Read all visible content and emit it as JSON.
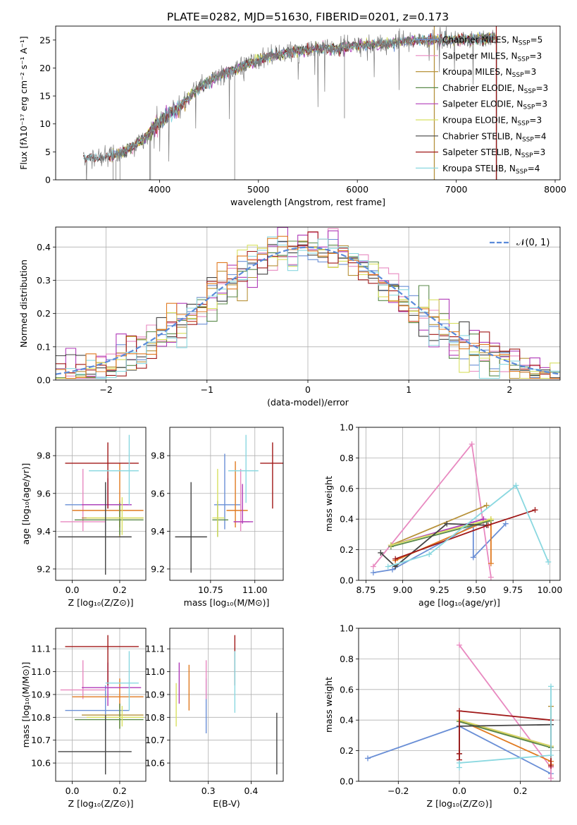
{
  "figure": {
    "title": "PLATE=0282, MJD=51630, FIBERID=0201, z=0.173"
  },
  "colors": {
    "Chabrier MILES": "#6a8fd6",
    "Salpeter MILES": "#e889c0",
    "Kroupa MILES": "#b8923a",
    "Chabrier ELODIE": "#5a8a4a",
    "Salpeter ELODIE": "#b03ab8",
    "Kroupa ELODIE": "#d8e060",
    "Chabrier STELIB": "#444444",
    "Salpeter STELIB": "#a01818",
    "Kroupa STELIB": "#8ad8e0",
    "orange": "#e07a20",
    "gray_spectrum": "#7a7a7a",
    "normal_curve": "#5b8bd9"
  },
  "chart_data": [
    {
      "id": "spectrum",
      "type": "line",
      "xlabel": "wavelength [Angstrom, rest frame]",
      "ylabel": "Flux [fλ10⁻¹⁷ erg cm⁻² s⁻¹ A⁻¹]",
      "xlim": [
        2950,
        8050
      ],
      "ylim": [
        0,
        27.5
      ],
      "xticks": [
        4000,
        5000,
        6000,
        7000,
        8000
      ],
      "yticks": [
        0,
        5,
        10,
        15,
        20,
        25
      ],
      "grid": false,
      "legend_position": "right",
      "spectrum_envelope": {
        "x": [
          3230,
          3400,
          3550,
          3700,
          3850,
          4000,
          4200,
          4400,
          4600,
          4800,
          5000,
          5200,
          5400,
          5600,
          5800,
          6000,
          6200,
          6400,
          6600,
          6800,
          7000,
          7200,
          7400
        ],
        "y": [
          3.8,
          4.0,
          4.5,
          5.6,
          7.5,
          10.5,
          13.0,
          16.5,
          18.5,
          20.0,
          21.5,
          22.5,
          23.0,
          23.5,
          23.5,
          24.0,
          24.2,
          24.5,
          25.0,
          25.0,
          25.0,
          25.2,
          25.5
        ]
      },
      "legend": [
        {
          "label": "Chabrier MILES, N",
          "sub": "SSP",
          "tail": "=5",
          "color_key": "Chabrier MILES"
        },
        {
          "label": "Salpeter MILES, N",
          "sub": "SSP",
          "tail": "=3",
          "color_key": "Salpeter MILES"
        },
        {
          "label": "Kroupa MILES, N",
          "sub": "SSP",
          "tail": "=3",
          "color_key": "Kroupa MILES"
        },
        {
          "label": "Chabrier ELODIE, N",
          "sub": "SSP",
          "tail": "=3",
          "color_key": "Chabrier ELODIE"
        },
        {
          "label": "Salpeter ELODIE, N",
          "sub": "SSP",
          "tail": "=3",
          "color_key": "Salpeter ELODIE"
        },
        {
          "label": "Kroupa ELODIE, N",
          "sub": "SSP",
          "tail": "=3",
          "color_key": "Kroupa ELODIE"
        },
        {
          "label": "Chabrier STELIB, N",
          "sub": "SSP",
          "tail": "=4",
          "color_key": "Chabrier STELIB"
        },
        {
          "label": "Salpeter STELIB, N",
          "sub": "SSP",
          "tail": "=3",
          "color_key": "Salpeter STELIB"
        },
        {
          "label": "Kroupa STELIB, N",
          "sub": "SSP",
          "tail": "=4",
          "color_key": "Kroupa STELIB"
        }
      ]
    },
    {
      "id": "residuals",
      "type": "line",
      "xlabel": "(data-model)/error",
      "ylabel": "Normed distribution",
      "xlim": [
        -2.5,
        2.5
      ],
      "ylim": [
        0,
        0.46
      ],
      "xticks": [
        -2,
        -1,
        0,
        1,
        2
      ],
      "yticks": [
        0.0,
        0.1,
        0.2,
        0.3,
        0.4
      ],
      "grid": true,
      "legend_label": "𝒩(0, 1)",
      "legend_position": "top-right",
      "bin_width": 0.1
    },
    {
      "id": "age_vs_Z",
      "type": "scatter",
      "xlabel": "Z [log₁₀(Z/Z⊙)]",
      "ylabel": "age  [log₁₀(age/yr)]",
      "xlim": [
        -0.07,
        0.31
      ],
      "ylim": [
        9.14,
        9.95
      ],
      "xticks": [
        0.0,
        0.2
      ],
      "yticks": [
        9.2,
        9.4,
        9.6,
        9.8
      ],
      "grid": true,
      "points": [
        {
          "c": "Chabrier MILES",
          "x": 0.14,
          "xe": [
            -0.03,
            0.25
          ],
          "y": 9.54,
          "ye": [
            9.41,
            9.62
          ]
        },
        {
          "c": "Salpeter MILES",
          "x": 0.045,
          "xe": [
            -0.05,
            0.14
          ],
          "y": 9.45,
          "ye": [
            9.4,
            9.73
          ]
        },
        {
          "c": "Kroupa MILES",
          "x": 0.2,
          "xe": [
            0.04,
            0.3
          ],
          "y": 9.47,
          "ye": [
            9.37,
            9.56
          ]
        },
        {
          "c": "orange",
          "x": 0.2,
          "xe": [
            0.0,
            0.3
          ],
          "y": 9.51,
          "ye": [
            9.42,
            9.76
          ]
        },
        {
          "c": "Chabrier ELODIE",
          "x": 0.2,
          "xe": [
            0.01,
            0.3
          ],
          "y": 9.46,
          "ye": [
            9.38,
            9.55
          ]
        },
        {
          "c": "Salpeter ELODIE",
          "x": 0.15,
          "xe": [
            0.04,
            0.25
          ],
          "y": 9.54,
          "ye": [
            9.52,
            9.68
          ]
        },
        {
          "c": "Kroupa ELODIE",
          "x": 0.21,
          "xe": [
            0.06,
            0.3
          ],
          "y": 9.47,
          "ye": [
            9.38,
            9.58
          ]
        },
        {
          "c": "Chabrier STELIB",
          "x": 0.14,
          "xe": [
            -0.06,
            0.25
          ],
          "y": 9.37,
          "ye": [
            9.17,
            9.66
          ]
        },
        {
          "c": "Salpeter STELIB",
          "x": 0.15,
          "xe": [
            -0.03,
            0.28
          ],
          "y": 9.76,
          "ye": [
            9.52,
            9.87
          ]
        },
        {
          "c": "Kroupa STELIB",
          "x": 0.24,
          "xe": [
            0.07,
            0.28
          ],
          "y": 9.72,
          "ye": [
            9.54,
            9.91
          ]
        }
      ]
    },
    {
      "id": "age_vs_mass",
      "type": "scatter",
      "xlabel": "mass [log₁₀(M/M⊙)]",
      "xlim": [
        10.52,
        11.16
      ],
      "ylim": [
        9.14,
        9.95
      ],
      "xticks": [
        10.75,
        11.0
      ],
      "yticks": [
        9.2,
        9.4,
        9.6,
        9.8
      ],
      "grid": true,
      "points": [
        {
          "c": "Chabrier MILES",
          "x": 10.83,
          "xe": [
            10.77,
            10.92
          ],
          "y": 9.54,
          "ye": [
            9.41,
            9.81
          ]
        },
        {
          "c": "Salpeter MILES",
          "x": 10.92,
          "xe": [
            10.88,
            10.97
          ],
          "y": 9.45,
          "ye": [
            9.4,
            9.73
          ]
        },
        {
          "c": "orange",
          "x": 10.89,
          "xe": [
            10.84,
            10.96
          ],
          "y": 9.51,
          "ye": [
            9.42,
            9.77
          ]
        },
        {
          "c": "Chabrier ELODIE",
          "x": 10.79,
          "xe": [
            10.76,
            10.85
          ],
          "y": 9.46,
          "ye": [
            9.37,
            9.56
          ]
        },
        {
          "c": "Salpeter ELODIE",
          "x": 10.93,
          "xe": [
            10.88,
            10.99
          ],
          "y": 9.45,
          "ye": [
            9.44,
            9.65
          ]
        },
        {
          "c": "Kroupa ELODIE",
          "x": 10.79,
          "xe": [
            10.76,
            10.83
          ],
          "y": 9.47,
          "ye": [
            9.37,
            9.73
          ]
        },
        {
          "c": "Chabrier STELIB",
          "x": 10.64,
          "xe": [
            10.55,
            10.73
          ],
          "y": 9.37,
          "ye": [
            9.18,
            9.66
          ]
        },
        {
          "c": "Salpeter STELIB",
          "x": 11.1,
          "xe": [
            11.03,
            11.16
          ],
          "y": 9.76,
          "ye": [
            9.52,
            9.87
          ]
        },
        {
          "c": "Kroupa STELIB",
          "x": 10.95,
          "xe": [
            10.85,
            11.02
          ],
          "y": 9.72,
          "ye": [
            9.55,
            9.91
          ]
        }
      ]
    },
    {
      "id": "mass_weight_vs_age",
      "type": "line",
      "xlabel": "age  [log₁₀(age/yr)]",
      "ylabel": "mass weight",
      "xlim": [
        8.7,
        10.07
      ],
      "ylim": [
        0,
        1
      ],
      "xticks": [
        8.75,
        9.0,
        9.25,
        9.5,
        9.75,
        10.0
      ],
      "yticks": [
        0.0,
        0.2,
        0.4,
        0.6,
        0.8,
        1.0
      ],
      "grid": true,
      "series": [
        {
          "c": "Chabrier MILES",
          "x": [
            8.8,
            8.93,
            9.48,
            9.48,
            9.7
          ],
          "y": [
            0.05,
            0.07,
            0.36,
            0.15,
            0.37
          ]
        },
        {
          "c": "Salpeter MILES",
          "x": [
            8.8,
            9.47,
            9.6
          ],
          "y": [
            0.09,
            0.89,
            0.02
          ]
        },
        {
          "c": "Kroupa MILES",
          "x": [
            8.92,
            9.57
          ],
          "y": [
            0.23,
            0.49
          ]
        },
        {
          "c": "orange",
          "x": [
            8.95,
            9.6,
            9.6
          ],
          "y": [
            0.13,
            0.4,
            0.11
          ]
        },
        {
          "c": "Chabrier ELODIE",
          "x": [
            8.92,
            9.6
          ],
          "y": [
            0.22,
            0.39
          ]
        },
        {
          "c": "Salpeter ELODIE",
          "x": [
            8.92,
            9.55
          ],
          "y": [
            0.23,
            0.4
          ]
        },
        {
          "c": "Kroupa ELODIE",
          "x": [
            8.92,
            9.6
          ],
          "y": [
            0.23,
            0.4
          ]
        },
        {
          "c": "Chabrier STELIB",
          "x": [
            8.85,
            8.95,
            9.3,
            9.57
          ],
          "y": [
            0.18,
            0.09,
            0.37,
            0.36
          ]
        },
        {
          "c": "Salpeter STELIB",
          "x": [
            8.95,
            9.58,
            9.9
          ],
          "y": [
            0.14,
            0.36,
            0.46
          ]
        },
        {
          "c": "Kroupa STELIB",
          "x": [
            8.9,
            9.18,
            9.77,
            9.99
          ],
          "y": [
            0.09,
            0.17,
            0.62,
            0.12
          ]
        }
      ]
    },
    {
      "id": "mass_vs_Z",
      "type": "scatter",
      "xlabel": "Z [log₁₀(Z/Z⊙)]",
      "ylabel": "mass [log₁₀(M/M⊙)]",
      "xlim": [
        -0.07,
        0.31
      ],
      "ylim": [
        10.52,
        11.19
      ],
      "xticks": [
        0.0,
        0.2
      ],
      "yticks": [
        10.6,
        10.7,
        10.8,
        10.9,
        11.0,
        11.1
      ],
      "grid": true,
      "points": [
        {
          "c": "Chabrier MILES",
          "x": 0.14,
          "xe": [
            -0.03,
            0.24
          ],
          "y": 10.83,
          "ye": [
            10.74,
            10.94
          ]
        },
        {
          "c": "Salpeter MILES",
          "x": 0.045,
          "xe": [
            -0.05,
            0.14
          ],
          "y": 10.92,
          "ye": [
            10.88,
            11.05
          ]
        },
        {
          "c": "Kroupa MILES",
          "x": 0.2,
          "xe": [
            0.04,
            0.3
          ],
          "y": 10.81,
          "ye": [
            10.75,
            10.86
          ]
        },
        {
          "c": "orange",
          "x": 0.2,
          "xe": [
            0.0,
            0.3
          ],
          "y": 10.89,
          "ye": [
            10.84,
            10.97
          ]
        },
        {
          "c": "Chabrier ELODIE",
          "x": 0.2,
          "xe": [
            0.01,
            0.3
          ],
          "y": 10.79,
          "ye": [
            10.75,
            10.86
          ]
        },
        {
          "c": "Salpeter ELODIE",
          "x": 0.15,
          "xe": [
            0.04,
            0.29
          ],
          "y": 10.93,
          "ye": [
            10.85,
            11.04
          ]
        },
        {
          "c": "Kroupa ELODIE",
          "x": 0.21,
          "xe": [
            0.06,
            0.3
          ],
          "y": 10.8,
          "ye": [
            10.76,
            10.85
          ]
        },
        {
          "c": "Chabrier STELIB",
          "x": 0.14,
          "xe": [
            -0.06,
            0.25
          ],
          "y": 10.65,
          "ye": [
            10.55,
            10.81
          ]
        },
        {
          "c": "Salpeter STELIB",
          "x": 0.15,
          "xe": [
            -0.03,
            0.28
          ],
          "y": 11.11,
          "ye": [
            10.94,
            11.16
          ]
        },
        {
          "c": "Kroupa STELIB",
          "x": 0.24,
          "xe": [
            0.14,
            0.28
          ],
          "y": 10.95,
          "ye": [
            10.83,
            11.09
          ]
        }
      ]
    },
    {
      "id": "mass_vs_EBV",
      "type": "scatter",
      "xlabel": "E(B-V)",
      "xlim": [
        0.21,
        0.475
      ],
      "ylim": [
        10.52,
        11.19
      ],
      "xticks": [
        0.2,
        0.3,
        0.4
      ],
      "yticks": [
        10.6,
        10.7,
        10.8,
        10.9,
        11.0,
        11.1
      ],
      "grid": true,
      "points": [
        {
          "c": "Chabrier MILES",
          "x": 0.295,
          "y": 10.83,
          "ye": [
            10.73,
            10.97
          ]
        },
        {
          "c": "Salpeter MILES",
          "x": 0.295,
          "y": 10.92,
          "ye": [
            10.88,
            11.05
          ]
        },
        {
          "c": "orange",
          "x": 0.255,
          "y": 10.89,
          "ye": [
            10.83,
            11.03
          ]
        },
        {
          "c": "Salpeter ELODIE",
          "x": 0.232,
          "y": 10.93,
          "ye": [
            10.86,
            11.04
          ]
        },
        {
          "c": "Kroupa ELODIE",
          "x": 0.225,
          "y": 10.8,
          "ye": [
            10.76,
            10.95
          ]
        },
        {
          "c": "Chabrier STELIB",
          "x": 0.46,
          "y": 10.65,
          "ye": [
            10.55,
            10.82
          ]
        },
        {
          "c": "Salpeter STELIB",
          "x": 0.362,
          "y": 11.11,
          "ye": [
            10.94,
            11.16
          ]
        },
        {
          "c": "Kroupa STELIB",
          "x": 0.362,
          "y": 10.95,
          "ye": [
            10.82,
            11.09
          ]
        }
      ]
    },
    {
      "id": "mass_weight_vs_Z",
      "type": "line",
      "xlabel": "Z [log₁₀(Z/Z⊙)]",
      "ylabel": "mass weight",
      "xlim": [
        -0.33,
        0.33
      ],
      "ylim": [
        0,
        1
      ],
      "xticks": [
        -0.2,
        0.0,
        0.2
      ],
      "yticks": [
        0.0,
        0.2,
        0.4,
        0.6,
        0.8,
        1.0
      ],
      "grid": true,
      "series": [
        {
          "c": "Chabrier MILES",
          "x": [
            -0.3,
            0.0,
            0.3
          ],
          "y": [
            0.15,
            0.36,
            0.05
          ]
        },
        {
          "c": "Salpeter MILES",
          "x": [
            0.0,
            0.3,
            0.3
          ],
          "y": [
            0.89,
            0.09,
            0.02
          ]
        },
        {
          "c": "Kroupa MILES",
          "x": [
            0.0,
            0.3,
            0.3
          ],
          "y": [
            0.39,
            0.23,
            0.49
          ]
        },
        {
          "c": "orange",
          "x": [
            0.0,
            0.3,
            0.3
          ],
          "y": [
            0.4,
            0.13,
            0.11
          ]
        },
        {
          "c": "Chabrier ELODIE",
          "x": [
            0.0,
            0.3
          ],
          "y": [
            0.39,
            0.22
          ]
        },
        {
          "c": "Salpeter ELODIE",
          "x": [
            0.0,
            0.3
          ],
          "y": [
            0.4,
            0.23
          ]
        },
        {
          "c": "Kroupa ELODIE",
          "x": [
            0.0,
            0.3
          ],
          "y": [
            0.4,
            0.23
          ]
        },
        {
          "c": "Chabrier STELIB",
          "x": [
            0.0,
            0.0,
            0.3
          ],
          "y": [
            0.18,
            0.36,
            0.37
          ]
        },
        {
          "c": "Salpeter STELIB",
          "x": [
            0.0,
            0.0,
            0.0,
            0.3,
            0.3
          ],
          "y": [
            0.14,
            0.18,
            0.46,
            0.4,
            0.1
          ]
        },
        {
          "c": "Kroupa STELIB",
          "x": [
            0.0,
            0.0,
            0.3,
            0.3
          ],
          "y": [
            0.09,
            0.12,
            0.17,
            0.62
          ]
        }
      ]
    }
  ]
}
